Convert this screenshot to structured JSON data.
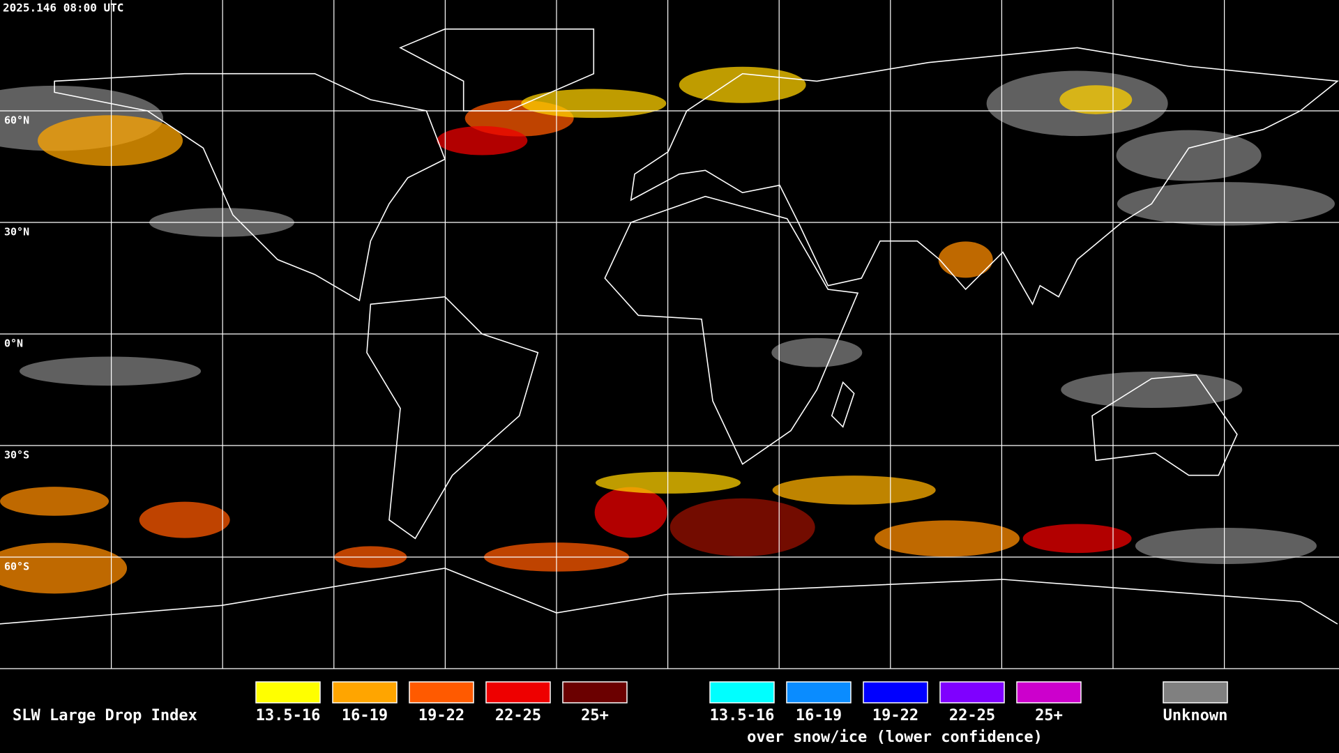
{
  "timestamp": "2025.146 08:00 UTC",
  "latitude_labels": [
    "60°N",
    "30°N",
    "0°N",
    "30°S",
    "60°S"
  ],
  "legend": {
    "title": "SLW Large Drop Index",
    "items": [
      {
        "label": "13.5-16",
        "color": "#ffff00"
      },
      {
        "label": "16-19",
        "color": "#ffa500"
      },
      {
        "label": "19-22",
        "color": "#ff5a00"
      },
      {
        "label": "22-25",
        "color": "#ee0000"
      },
      {
        "label": "25+",
        "color": "#6b0000"
      }
    ],
    "snow_ice_items": [
      {
        "label": "13.5-16",
        "color": "#00ffff"
      },
      {
        "label": "16-19",
        "color": "#0a8cff"
      },
      {
        "label": "19-22",
        "color": "#0000ff"
      },
      {
        "label": "22-25",
        "color": "#7f00ff"
      },
      {
        "label": "25+",
        "color": "#cc00cc"
      }
    ],
    "snow_ice_caption": "over snow/ice (lower confidence)",
    "unknown": {
      "label": "Unknown",
      "color": "#808080"
    }
  }
}
